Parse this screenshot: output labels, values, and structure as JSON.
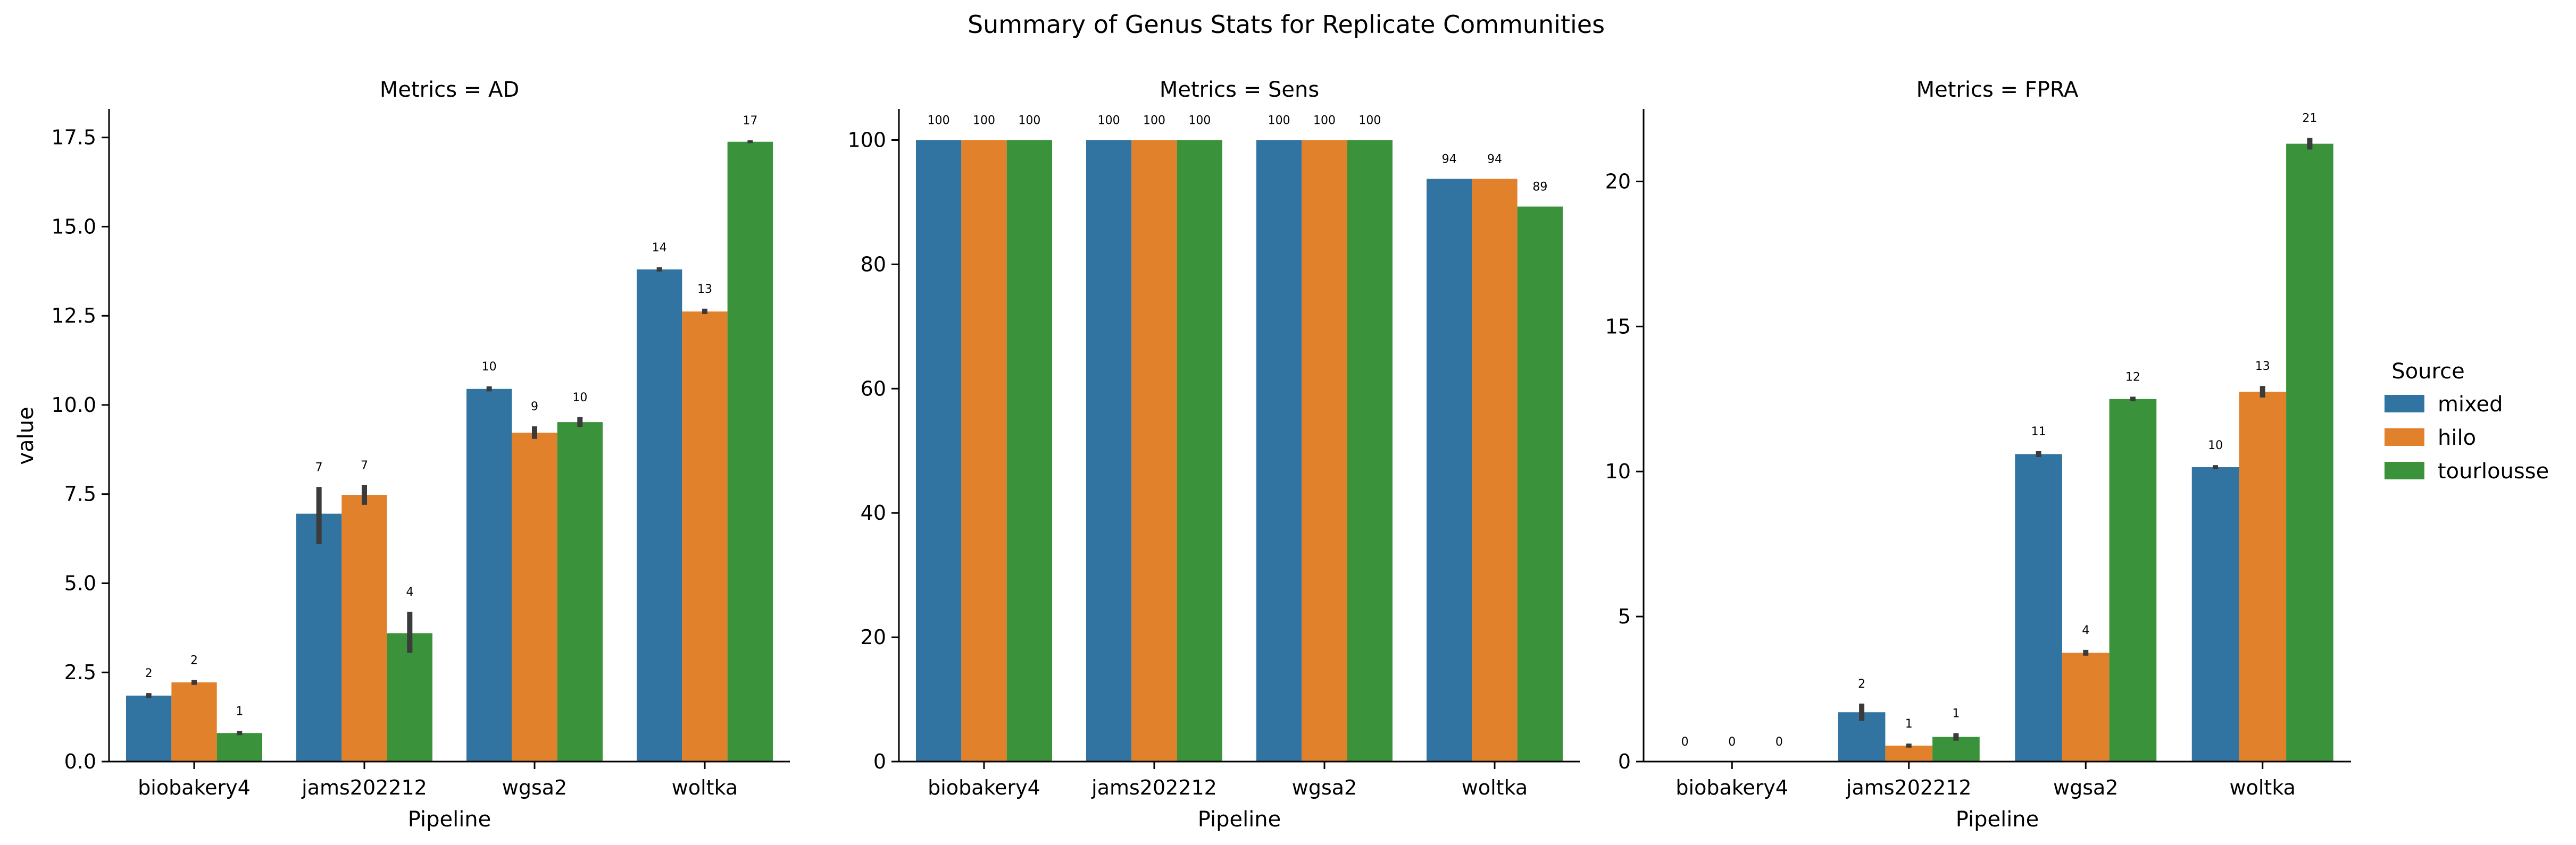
{
  "chart_data": {
    "type": "bar",
    "title": "Summary of Genus Stats for Replicate Communities",
    "categories": [
      "biobakery4",
      "jams202212",
      "wgsa2",
      "woltka"
    ],
    "xlabel": "Pipeline",
    "ylabel": "value",
    "legend": {
      "title": "Source",
      "placement": "right",
      "entries": [
        {
          "name": "mixed",
          "color": "#3274a1"
        },
        {
          "name": "hilo",
          "color": "#e1812c"
        },
        {
          "name": "tourlousse",
          "color": "#3a923a"
        }
      ]
    },
    "panels": [
      {
        "title": "Metrics = AD",
        "ylim": [
          0,
          18.3
        ],
        "yticks": [
          "0.0",
          "2.5",
          "5.0",
          "7.5",
          "10.0",
          "12.5",
          "15.0",
          "17.5"
        ],
        "ytick_values": [
          0,
          2.5,
          5,
          7.5,
          10,
          12.5,
          15,
          17.5
        ],
        "series": [
          {
            "name": "mixed",
            "values": [
              1.85,
              6.95,
              10.45,
              13.8
            ],
            "err_low": [
              1.78,
              6.1,
              10.38,
              13.74
            ],
            "err_high": [
              1.92,
              7.7,
              10.52,
              13.86
            ],
            "labels": [
              "2",
              "7",
              "10",
              "14"
            ]
          },
          {
            "name": "hilo",
            "values": [
              2.22,
              7.48,
              9.22,
              12.62
            ],
            "err_low": [
              2.15,
              7.2,
              9.05,
              12.55
            ],
            "err_high": [
              2.29,
              7.75,
              9.4,
              12.7
            ],
            "labels": [
              "2",
              "7",
              "9",
              "13"
            ]
          },
          {
            "name": "tourlousse",
            "values": [
              0.8,
              3.6,
              9.52,
              17.38
            ],
            "err_low": [
              0.74,
              3.05,
              9.38,
              17.34
            ],
            "err_high": [
              0.86,
              4.2,
              9.66,
              17.42
            ],
            "labels": [
              "1",
              "4",
              "10",
              "17"
            ]
          }
        ]
      },
      {
        "title": "Metrics = Sens",
        "ylim": [
          0,
          105
        ],
        "yticks": [
          "0",
          "20",
          "40",
          "60",
          "80",
          "100"
        ],
        "ytick_values": [
          0,
          20,
          40,
          60,
          80,
          100
        ],
        "series": [
          {
            "name": "mixed",
            "values": [
              100,
              100,
              100,
              93.75
            ],
            "err_low": [
              100,
              100,
              100,
              93.75
            ],
            "err_high": [
              100,
              100,
              100,
              93.75
            ],
            "labels": [
              "100",
              "100",
              "100",
              "94"
            ]
          },
          {
            "name": "hilo",
            "values": [
              100,
              100,
              100,
              93.75
            ],
            "err_low": [
              100,
              100,
              100,
              93.75
            ],
            "err_high": [
              100,
              100,
              100,
              93.75
            ],
            "labels": [
              "100",
              "100",
              "100",
              "94"
            ]
          },
          {
            "name": "tourlousse",
            "values": [
              100,
              100,
              100,
              89.3
            ],
            "err_low": [
              100,
              100,
              100,
              89.3
            ],
            "err_high": [
              100,
              100,
              100,
              89.3
            ],
            "labels": [
              "100",
              "100",
              "100",
              "89"
            ]
          }
        ]
      },
      {
        "title": "Metrics = FPRA",
        "ylim": [
          0,
          22.5
        ],
        "yticks": [
          "0",
          "5",
          "10",
          "15",
          "20"
        ],
        "ytick_values": [
          0,
          5,
          10,
          15,
          20
        ],
        "series": [
          {
            "name": "mixed",
            "values": [
              0,
              1.7,
              10.6,
              10.15
            ],
            "err_low": [
              0,
              1.4,
              10.5,
              10.08
            ],
            "err_high": [
              0,
              2.0,
              10.7,
              10.22
            ],
            "labels": [
              "0",
              "2",
              "11",
              "10"
            ]
          },
          {
            "name": "hilo",
            "values": [
              0,
              0.55,
              3.75,
              12.75
            ],
            "err_low": [
              0,
              0.48,
              3.65,
              12.55
            ],
            "err_high": [
              0,
              0.62,
              3.85,
              12.95
            ],
            "labels": [
              "0",
              "1",
              "4",
              "13"
            ]
          },
          {
            "name": "tourlousse",
            "values": [
              0,
              0.85,
              12.5,
              21.3
            ],
            "err_low": [
              0,
              0.72,
              12.42,
              21.1
            ],
            "err_high": [
              0,
              0.98,
              12.58,
              21.5
            ],
            "labels": [
              "0",
              "1",
              "12",
              "21"
            ]
          }
        ]
      }
    ]
  }
}
